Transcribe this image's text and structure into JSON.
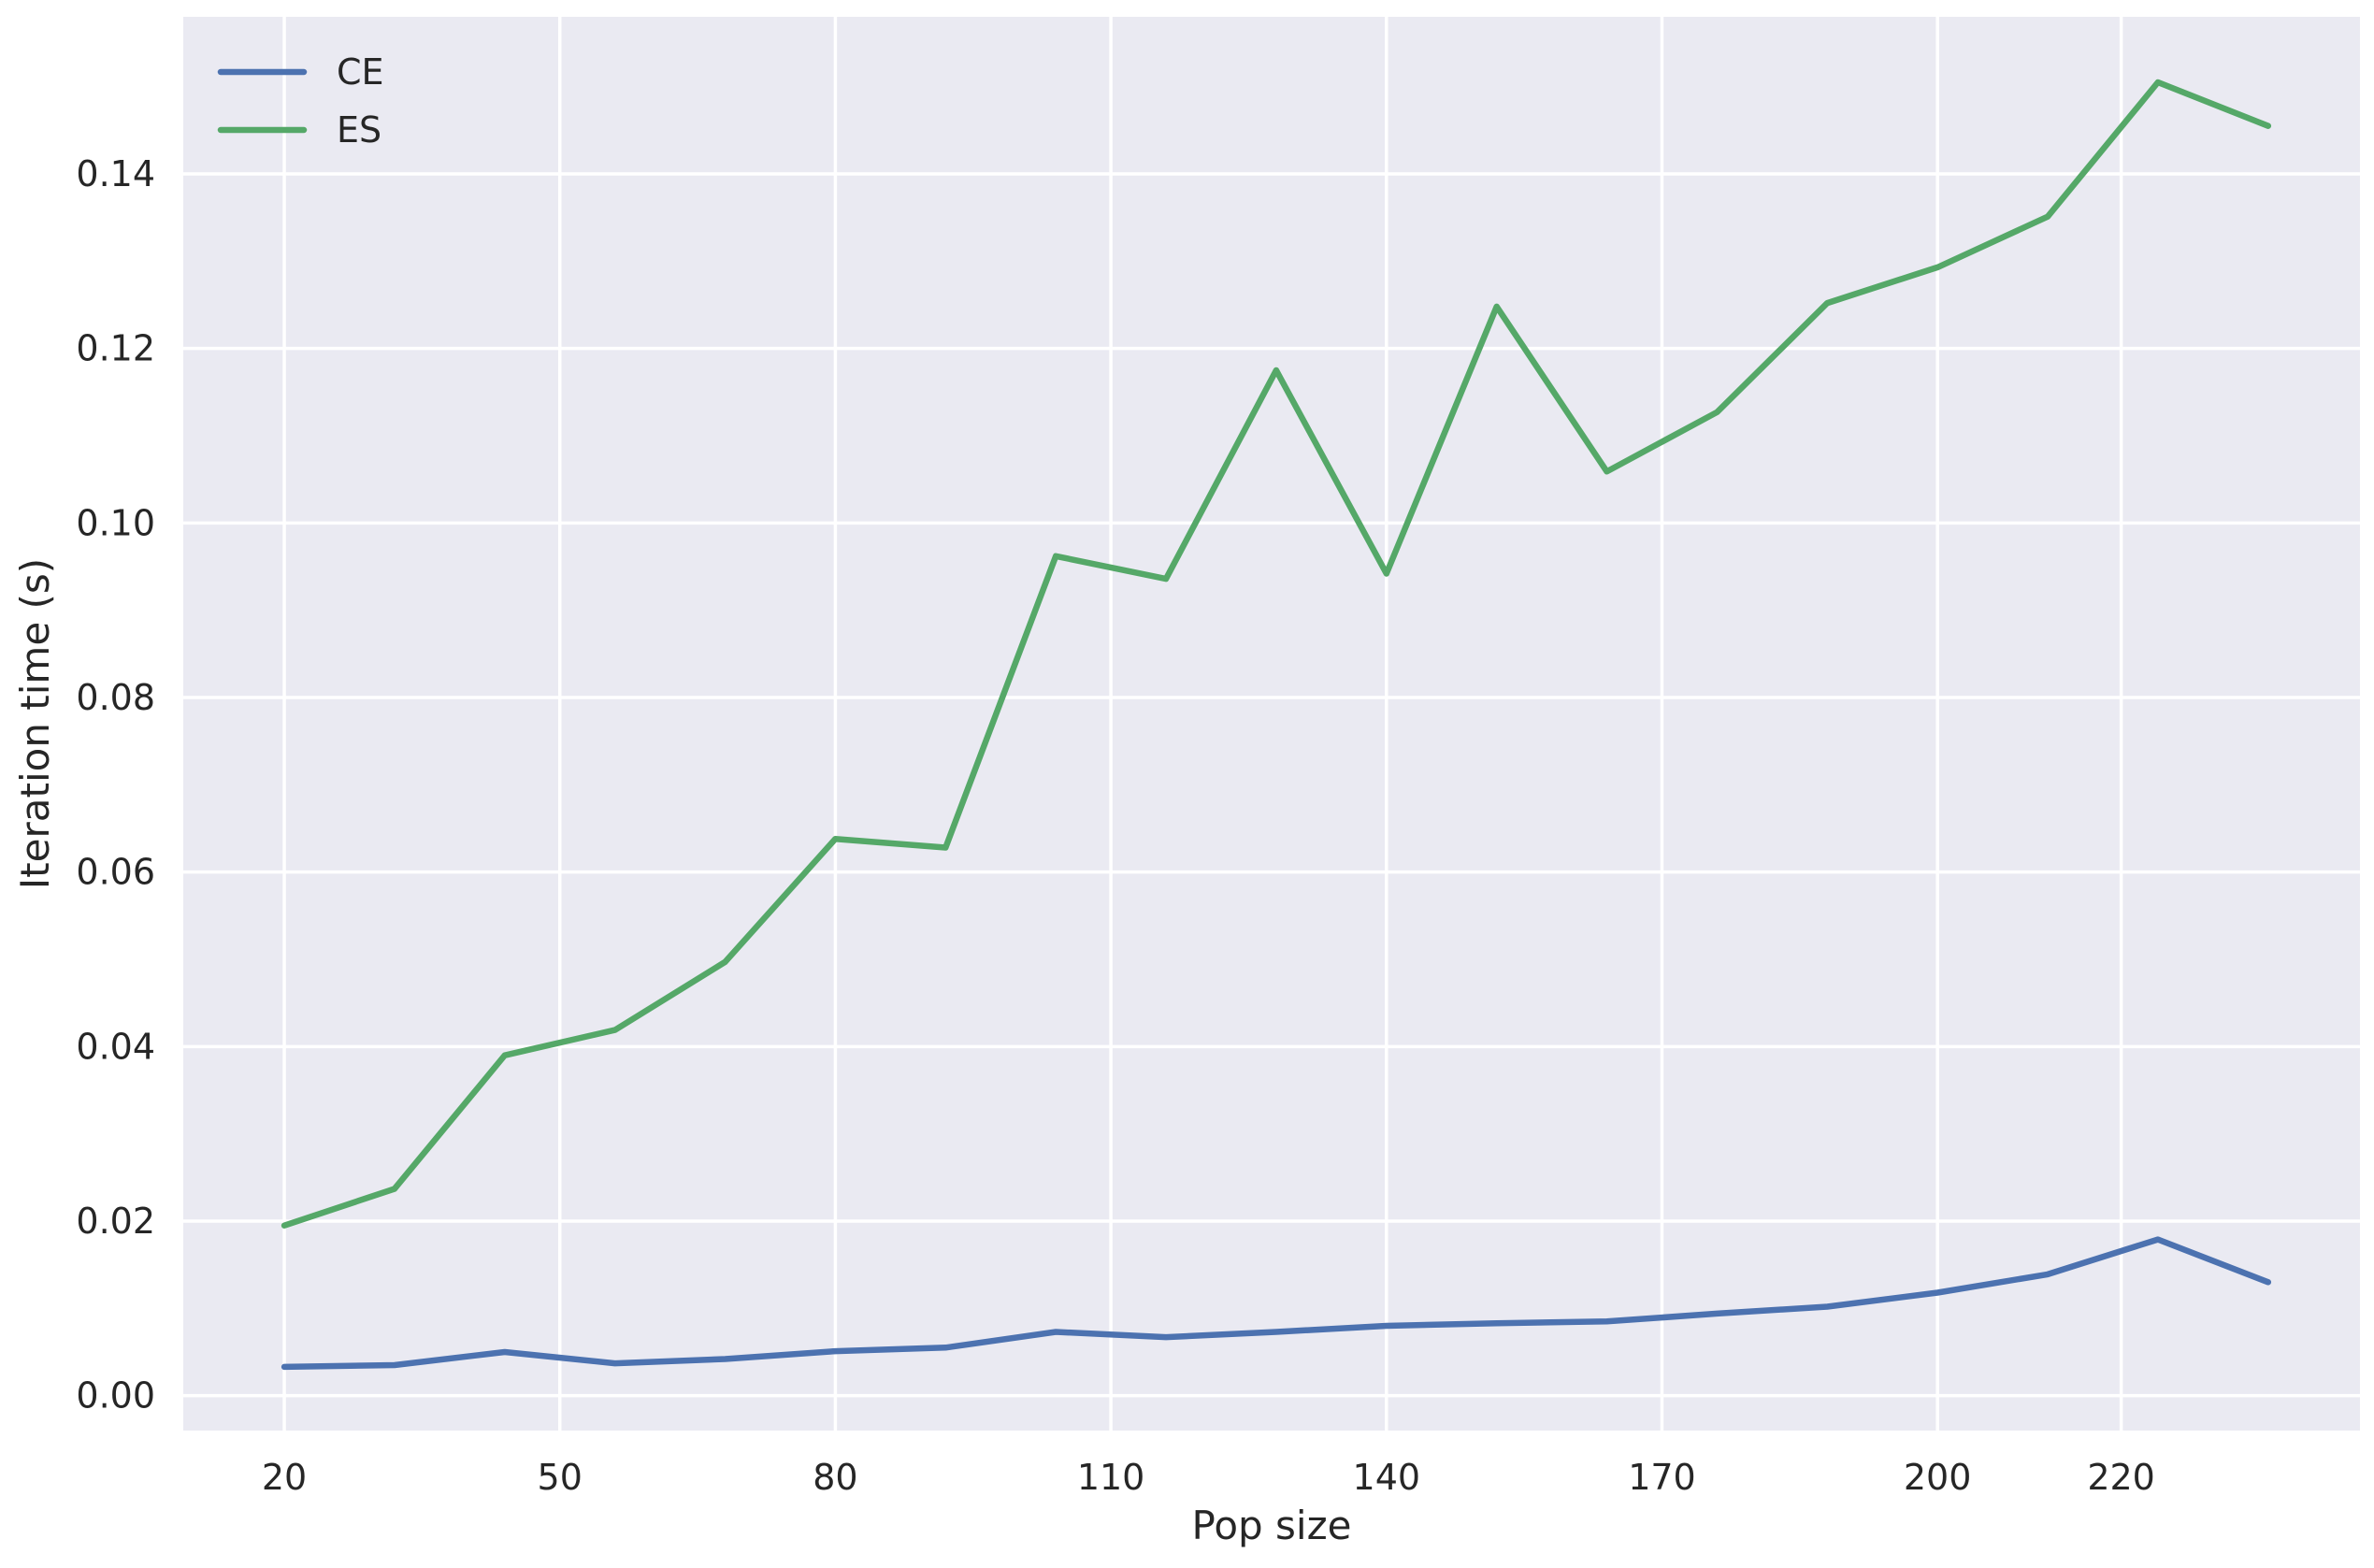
{
  "chart_data": {
    "type": "line",
    "title": "",
    "xlabel": "Pop size",
    "ylabel": "Iteration time (s)",
    "x": [
      20,
      32,
      44,
      56,
      68,
      80,
      92,
      104,
      116,
      128,
      140,
      152,
      164,
      176,
      188,
      200,
      212,
      224,
      236
    ],
    "x_ticks": [
      20,
      50,
      80,
      110,
      140,
      170,
      200,
      220
    ],
    "y_ticks": [
      0.0,
      0.02,
      0.04,
      0.06,
      0.08,
      0.1,
      0.12,
      0.14
    ],
    "xlim": [
      9,
      246
    ],
    "ylim": [
      -0.004,
      0.158
    ],
    "grid": true,
    "legend_position": "top-left",
    "background": "#eaeaf2",
    "series": [
      {
        "name": "CE",
        "color": "#4c72b0",
        "values": [
          0.0033,
          0.0035,
          0.005,
          0.0037,
          0.0042,
          0.0051,
          0.0055,
          0.0073,
          0.0067,
          0.0073,
          0.008,
          0.0083,
          0.0085,
          0.0094,
          0.0102,
          0.0118,
          0.0139,
          0.0179,
          0.013
        ]
      },
      {
        "name": "ES",
        "color": "#55a868",
        "values": [
          0.0195,
          0.0237,
          0.039,
          0.0419,
          0.0497,
          0.0638,
          0.0628,
          0.0962,
          0.0936,
          0.1175,
          0.0942,
          0.1248,
          0.1059,
          0.1127,
          0.1252,
          0.1293,
          0.1351,
          0.1505,
          0.1455
        ]
      }
    ]
  }
}
